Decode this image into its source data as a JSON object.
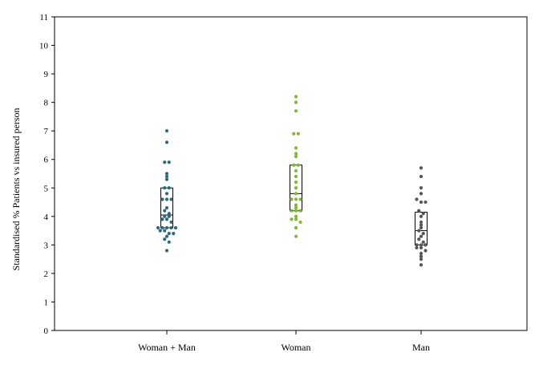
{
  "chart_data": {
    "type": "scatter",
    "subtype": "strip plot with box (median and interquartile range)",
    "title": "",
    "xlabel": "",
    "ylabel": "Standardised % Patients vs insured person",
    "ylim": [
      0,
      11
    ],
    "yticks": [
      "0",
      "1",
      "2",
      "3",
      "4",
      "5",
      "6",
      "7",
      "8",
      "9",
      "10",
      "11"
    ],
    "grid": false,
    "legend": "none",
    "categories": [
      "Woman + Man",
      "Woman",
      "Man"
    ],
    "series": [
      {
        "category": "Woman + Man",
        "color": "#2e6b78",
        "box": {
          "q1": 3.6,
          "median": 4.05,
          "q3": 5.0
        },
        "values": [
          7.0,
          6.6,
          5.9,
          5.9,
          5.5,
          5.4,
          5.3,
          5.0,
          5.0,
          4.8,
          4.6,
          4.6,
          4.6,
          4.3,
          4.2,
          4.1,
          4.0,
          4.0,
          3.9,
          3.9,
          3.8,
          3.6,
          3.6,
          3.6,
          3.6,
          3.6,
          3.5,
          3.5,
          3.4,
          3.4,
          3.3,
          3.2,
          3.1,
          2.8
        ]
      },
      {
        "category": "Woman",
        "color": "#7dbb2a",
        "box": {
          "q1": 4.2,
          "median": 4.8,
          "q3": 5.8
        },
        "values": [
          8.2,
          8.0,
          7.7,
          6.9,
          6.9,
          6.4,
          6.2,
          6.1,
          5.8,
          5.8,
          5.6,
          5.4,
          5.2,
          5.0,
          4.8,
          4.6,
          4.6,
          4.6,
          4.4,
          4.3,
          4.2,
          4.2,
          4.2,
          4.0,
          3.9,
          3.9,
          3.8,
          3.6,
          3.3
        ]
      },
      {
        "category": "Man",
        "color": "#555555",
        "box": {
          "q1": 3.0,
          "median": 3.5,
          "q3": 4.15
        },
        "values": [
          5.7,
          5.4,
          5.0,
          4.8,
          4.6,
          4.5,
          4.5,
          4.2,
          4.1,
          4.0,
          3.8,
          3.7,
          3.6,
          3.5,
          3.4,
          3.3,
          3.2,
          3.1,
          3.0,
          3.0,
          3.0,
          2.9,
          2.9,
          2.8,
          2.7,
          2.6,
          2.5,
          2.3
        ]
      }
    ]
  }
}
